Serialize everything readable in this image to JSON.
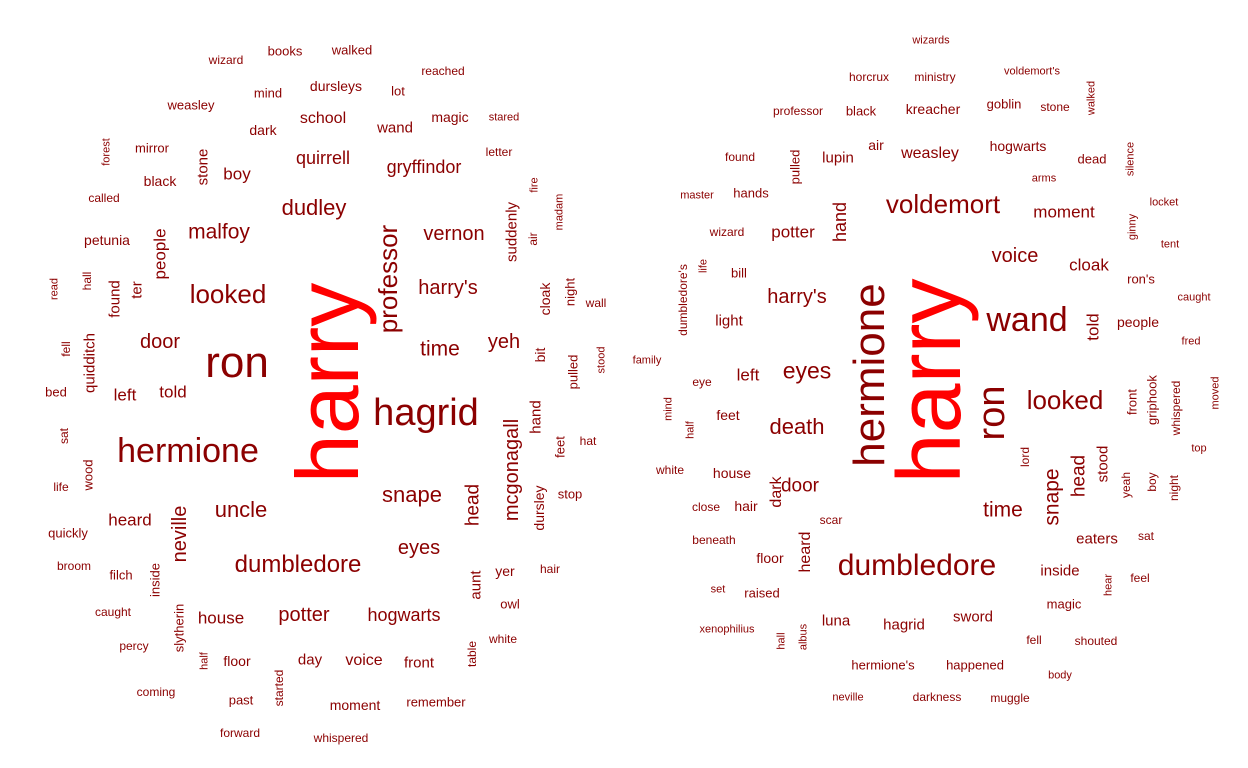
{
  "colors": {
    "top": "#ff0000",
    "normal": "#8b0000",
    "background": "#ffffff"
  },
  "left": {
    "words": [
      {
        "t": "harry",
        "v": true,
        "s": 88,
        "top": true
      },
      {
        "t": "ron",
        "s": 44
      },
      {
        "t": "hagrid",
        "s": 38
      },
      {
        "t": "hermione",
        "s": 34
      },
      {
        "t": "professor",
        "v": true,
        "s": 26
      },
      {
        "t": "looked",
        "s": 26
      },
      {
        "t": "dumbledore",
        "s": 24
      },
      {
        "t": "snape",
        "s": 22
      },
      {
        "t": "uncle",
        "s": 22
      },
      {
        "t": "dudley",
        "s": 22
      },
      {
        "t": "malfoy",
        "s": 21
      },
      {
        "t": "time",
        "s": 21
      },
      {
        "t": "harry's",
        "s": 20
      },
      {
        "t": "vernon",
        "s": 20
      },
      {
        "t": "mcgonagall",
        "v": true,
        "s": 20
      },
      {
        "t": "potter",
        "s": 20
      },
      {
        "t": "hogwarts",
        "s": 18
      },
      {
        "t": "door",
        "s": 20
      },
      {
        "t": "eyes",
        "s": 20
      },
      {
        "t": "yeh",
        "s": 20
      },
      {
        "t": "neville",
        "v": true,
        "s": 20
      },
      {
        "t": "quirrell",
        "s": 18
      },
      {
        "t": "gryffindor",
        "s": 18
      },
      {
        "t": "head",
        "v": true,
        "s": 19
      },
      {
        "t": "heard",
        "s": 17
      },
      {
        "t": "house",
        "s": 17
      },
      {
        "t": "voice",
        "s": 16
      },
      {
        "t": "told",
        "s": 17
      },
      {
        "t": "left",
        "s": 17
      },
      {
        "t": "boy",
        "s": 17
      },
      {
        "t": "people",
        "v": true,
        "s": 17
      },
      {
        "t": "school",
        "s": 16
      },
      {
        "t": "wand",
        "s": 15
      },
      {
        "t": "suddenly",
        "v": true,
        "s": 15
      },
      {
        "t": "quidditch",
        "v": true,
        "s": 15
      },
      {
        "t": "stone",
        "v": true,
        "s": 15
      },
      {
        "t": "ter",
        "v": true,
        "s": 15
      },
      {
        "t": "found",
        "v": true,
        "s": 15
      },
      {
        "t": "dursley",
        "v": true,
        "s": 14
      },
      {
        "t": "day",
        "s": 15
      },
      {
        "t": "front",
        "s": 15
      },
      {
        "t": "floor",
        "s": 14
      },
      {
        "t": "dark",
        "s": 14
      },
      {
        "t": "aunt",
        "v": true,
        "s": 15
      },
      {
        "t": "hand",
        "v": true,
        "s": 15
      },
      {
        "t": "dursleys",
        "s": 14
      },
      {
        "t": "black",
        "s": 14
      },
      {
        "t": "petunia",
        "s": 14
      },
      {
        "t": "magic",
        "s": 14
      },
      {
        "t": "moment",
        "s": 14
      },
      {
        "t": "yer",
        "s": 14
      },
      {
        "t": "cloak",
        "v": true,
        "s": 14
      },
      {
        "t": "bit",
        "v": true,
        "s": 14
      },
      {
        "t": "pulled",
        "v": true,
        "s": 13
      },
      {
        "t": "feet",
        "v": true,
        "s": 13
      },
      {
        "t": "wood",
        "v": true,
        "s": 13
      },
      {
        "t": "table",
        "v": true,
        "s": 12
      },
      {
        "t": "started",
        "v": true,
        "s": 12
      },
      {
        "t": "slytherin",
        "v": true,
        "s": 13
      },
      {
        "t": "inside",
        "v": true,
        "s": 13
      },
      {
        "t": "filch",
        "s": 13
      },
      {
        "t": "weasley",
        "s": 13
      },
      {
        "t": "mind",
        "s": 13
      },
      {
        "t": "mirror",
        "s": 13
      },
      {
        "t": "books",
        "s": 13
      },
      {
        "t": "walked",
        "s": 13
      },
      {
        "t": "quickly",
        "s": 13
      },
      {
        "t": "past",
        "s": 13
      },
      {
        "t": "remember",
        "s": 13
      },
      {
        "t": "wizard",
        "s": 12
      },
      {
        "t": "lot",
        "s": 13
      },
      {
        "t": "stop",
        "s": 13
      },
      {
        "t": "owl",
        "s": 13
      },
      {
        "t": "night",
        "v": true,
        "s": 13
      },
      {
        "t": "letter",
        "s": 12
      },
      {
        "t": "stared",
        "s": 11
      },
      {
        "t": "reached",
        "s": 12
      },
      {
        "t": "called",
        "s": 12
      },
      {
        "t": "hat",
        "s": 12
      },
      {
        "t": "wall",
        "s": 12
      },
      {
        "t": "hair",
        "s": 12
      },
      {
        "t": "white",
        "s": 12
      },
      {
        "t": "bed",
        "s": 13
      },
      {
        "t": "life",
        "s": 12
      },
      {
        "t": "broom",
        "s": 12
      },
      {
        "t": "caught",
        "s": 12
      },
      {
        "t": "percy",
        "s": 12
      },
      {
        "t": "coming",
        "s": 12
      },
      {
        "t": "forward",
        "s": 12
      },
      {
        "t": "whispered",
        "s": 12
      },
      {
        "t": "madam",
        "v": true,
        "s": 11
      },
      {
        "t": "fire",
        "v": true,
        "s": 11
      },
      {
        "t": "air",
        "v": true,
        "s": 12
      },
      {
        "t": "forest",
        "v": true,
        "s": 11
      },
      {
        "t": "read",
        "v": true,
        "s": 11
      },
      {
        "t": "hall",
        "v": true,
        "s": 12
      },
      {
        "t": "fell",
        "v": true,
        "s": 12
      },
      {
        "t": "sat",
        "v": true,
        "s": 12
      },
      {
        "t": "half",
        "v": true,
        "s": 11
      },
      {
        "t": "stood",
        "v": true,
        "s": 11
      }
    ]
  },
  "right": {
    "words": [
      {
        "t": "harry",
        "v": true,
        "s": 90,
        "top": true
      },
      {
        "t": "hermione",
        "v": true,
        "s": 44
      },
      {
        "t": "ron",
        "v": true,
        "s": 38
      },
      {
        "t": "wand",
        "s": 34
      },
      {
        "t": "dumbledore",
        "s": 30
      },
      {
        "t": "voldemort",
        "s": 26
      },
      {
        "t": "looked",
        "s": 26
      },
      {
        "t": "eyes",
        "s": 23
      },
      {
        "t": "death",
        "s": 22
      },
      {
        "t": "snape",
        "v": true,
        "s": 21
      },
      {
        "t": "time",
        "s": 21
      },
      {
        "t": "harry's",
        "s": 20
      },
      {
        "t": "voice",
        "s": 20
      },
      {
        "t": "door",
        "s": 19
      },
      {
        "t": "head",
        "v": true,
        "s": 19
      },
      {
        "t": "hand",
        "v": true,
        "s": 18
      },
      {
        "t": "moment",
        "s": 17
      },
      {
        "t": "cloak",
        "s": 17
      },
      {
        "t": "potter",
        "s": 17
      },
      {
        "t": "told",
        "v": true,
        "s": 17
      },
      {
        "t": "weasley",
        "s": 16
      },
      {
        "t": "lupin",
        "s": 15
      },
      {
        "t": "hogwarts",
        "s": 14
      },
      {
        "t": "dark",
        "v": true,
        "s": 16
      },
      {
        "t": "heard",
        "v": true,
        "s": 16
      },
      {
        "t": "left",
        "s": 17
      },
      {
        "t": "light",
        "s": 15
      },
      {
        "t": "eaters",
        "s": 15
      },
      {
        "t": "inside",
        "s": 15
      },
      {
        "t": "hagrid",
        "s": 15
      },
      {
        "t": "sword",
        "s": 15
      },
      {
        "t": "luna",
        "s": 15
      },
      {
        "t": "stood",
        "v": true,
        "s": 15
      },
      {
        "t": "house",
        "s": 14
      },
      {
        "t": "floor",
        "s": 14
      },
      {
        "t": "hair",
        "s": 14
      },
      {
        "t": "people",
        "s": 14
      },
      {
        "t": "feet",
        "s": 14
      },
      {
        "t": "kreacher",
        "s": 14
      },
      {
        "t": "magic",
        "s": 13
      },
      {
        "t": "happened",
        "s": 13
      },
      {
        "t": "hermione's",
        "s": 13
      },
      {
        "t": "pulled",
        "v": true,
        "s": 13
      },
      {
        "t": "air",
        "s": 14
      },
      {
        "t": "front",
        "v": true,
        "s": 13
      },
      {
        "t": "lord",
        "v": true,
        "s": 12
      },
      {
        "t": "griphook",
        "v": true,
        "s": 13
      },
      {
        "t": "ron's",
        "s": 13
      },
      {
        "t": "goblin",
        "s": 13
      },
      {
        "t": "black",
        "s": 13
      },
      {
        "t": "professor",
        "s": 12
      },
      {
        "t": "dead",
        "s": 13
      },
      {
        "t": "ministry",
        "s": 12
      },
      {
        "t": "horcrux",
        "s": 12
      },
      {
        "t": "hands",
        "s": 13
      },
      {
        "t": "bill",
        "s": 13
      },
      {
        "t": "darkness",
        "s": 12
      },
      {
        "t": "muggle",
        "s": 12
      },
      {
        "t": "neville",
        "s": 11
      },
      {
        "t": "shouted",
        "s": 12
      },
      {
        "t": "fell",
        "s": 12
      },
      {
        "t": "raised",
        "s": 13
      },
      {
        "t": "beneath",
        "s": 12
      },
      {
        "t": "close",
        "s": 12
      },
      {
        "t": "scar",
        "s": 12
      },
      {
        "t": "sat",
        "s": 12
      },
      {
        "t": "feel",
        "s": 12
      },
      {
        "t": "body",
        "s": 11
      },
      {
        "t": "set",
        "s": 11
      },
      {
        "t": "white",
        "s": 12
      },
      {
        "t": "eye",
        "s": 12
      },
      {
        "t": "family",
        "s": 11
      },
      {
        "t": "wizard",
        "s": 12
      },
      {
        "t": "master",
        "s": 11
      },
      {
        "t": "found",
        "s": 12
      },
      {
        "t": "stone",
        "s": 12
      },
      {
        "t": "voldemort's",
        "s": 11
      },
      {
        "t": "wizards",
        "s": 11
      },
      {
        "t": "arms",
        "s": 11
      },
      {
        "t": "locket",
        "s": 11
      },
      {
        "t": "tent",
        "s": 11
      },
      {
        "t": "caught",
        "s": 11
      },
      {
        "t": "fred",
        "s": 11
      },
      {
        "t": "top",
        "s": 11
      },
      {
        "t": "xenophilius",
        "s": 11
      },
      {
        "t": "whispered",
        "v": true,
        "s": 12
      },
      {
        "t": "moved",
        "v": true,
        "s": 11
      },
      {
        "t": "yeah",
        "v": true,
        "s": 12
      },
      {
        "t": "boy",
        "v": true,
        "s": 12
      },
      {
        "t": "night",
        "v": true,
        "s": 12
      },
      {
        "t": "hear",
        "v": true,
        "s": 11
      },
      {
        "t": "ginny",
        "v": true,
        "s": 11
      },
      {
        "t": "silence",
        "v": true,
        "s": 11
      },
      {
        "t": "walked",
        "v": true,
        "s": 11
      },
      {
        "t": "dumbledore's",
        "v": true,
        "s": 12
      },
      {
        "t": "life",
        "v": true,
        "s": 11
      },
      {
        "t": "mind",
        "v": true,
        "s": 11
      },
      {
        "t": "half",
        "v": true,
        "s": 11
      },
      {
        "t": "albus",
        "v": true,
        "s": 11
      },
      {
        "t": "hall",
        "v": true,
        "s": 11
      }
    ]
  }
}
